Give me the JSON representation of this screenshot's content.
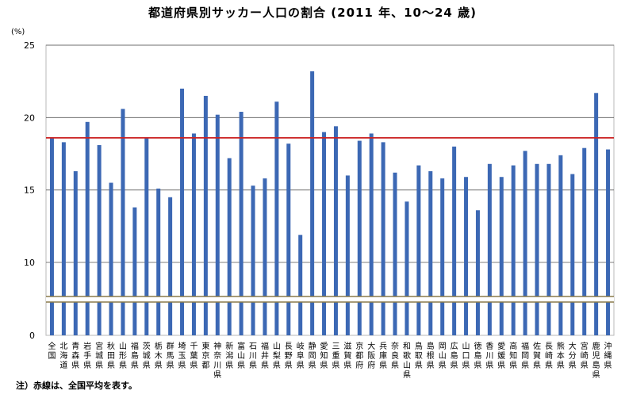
{
  "chart_data": {
    "type": "bar",
    "title": "都道府県別サッカー人口の割合 (2011 年、10～24 歳)",
    "unit_label": "(%)",
    "ylim": [
      0,
      25
    ],
    "yticks": [
      0,
      10,
      15,
      20,
      25
    ],
    "axis_break": true,
    "grid": true,
    "average": 18.6,
    "average_line_color": "#cc2222",
    "bar_color": "#3c68b4",
    "note": "注）赤線は、全国平均を表す。",
    "categories": [
      "全国",
      "北海道",
      "青森県",
      "岩手県",
      "宮城県",
      "秋田県",
      "山形県",
      "福島県",
      "茨城県",
      "栃木県",
      "群馬県",
      "埼玉県",
      "千葉県",
      "東京都",
      "神奈川県",
      "新潟県",
      "富山県",
      "石川県",
      "福井県",
      "山梨県",
      "長野県",
      "岐阜県",
      "静岡県",
      "愛知県",
      "三重県",
      "滋賀県",
      "京都府",
      "大阪府",
      "兵庫県",
      "奈良県",
      "和歌山県",
      "鳥取県",
      "島根県",
      "岡山県",
      "広島県",
      "山口県",
      "徳島県",
      "香川県",
      "愛媛県",
      "高知県",
      "福岡県",
      "佐賀県",
      "長崎県",
      "熊本県",
      "大分県",
      "宮崎県",
      "鹿児島県",
      "沖縄県"
    ],
    "values": [
      18.6,
      18.3,
      16.3,
      19.7,
      18.1,
      15.5,
      20.6,
      13.8,
      18.6,
      15.1,
      14.5,
      22.0,
      18.9,
      21.5,
      20.2,
      17.2,
      20.4,
      15.3,
      15.8,
      21.1,
      18.2,
      11.9,
      23.2,
      19.0,
      19.4,
      16.0,
      18.4,
      18.9,
      18.3,
      16.2,
      14.2,
      16.7,
      16.3,
      15.8,
      18.0,
      15.9,
      13.6,
      16.8,
      15.9,
      16.7,
      17.7,
      16.8,
      16.8,
      17.4,
      16.1,
      17.9,
      21.7,
      17.8
    ]
  }
}
